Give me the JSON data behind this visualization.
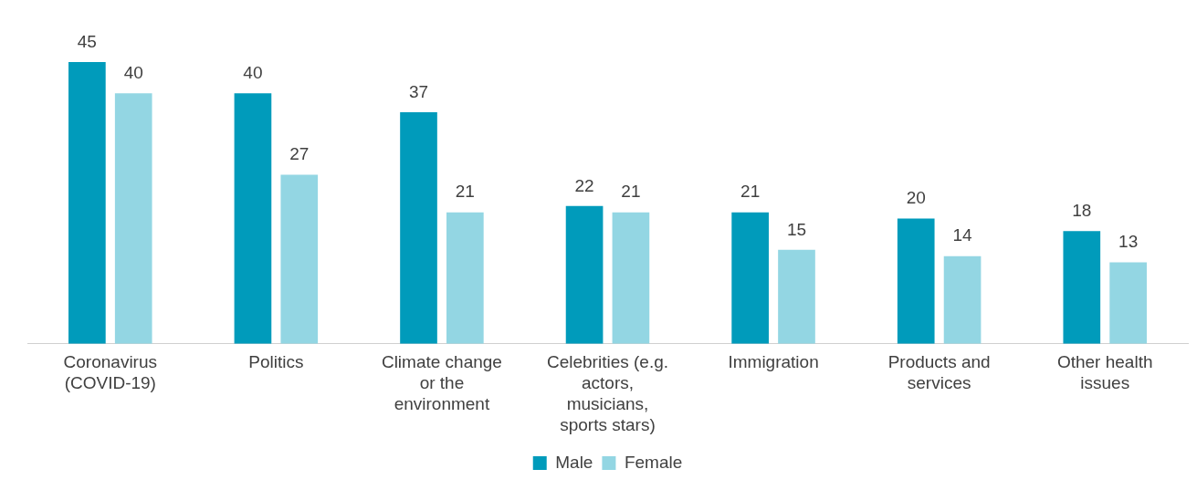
{
  "chart_data": {
    "type": "bar",
    "categories": [
      "Coronavirus (COVID-19)",
      "Politics",
      "Climate change or the environment",
      "Celebrities (e.g. actors, musicians, sports stars)",
      "Immigration",
      "Products and services",
      "Other health issues"
    ],
    "series": [
      {
        "name": "Male",
        "color": "#009bbb",
        "values": [
          45,
          40,
          37,
          22,
          21,
          20,
          18
        ]
      },
      {
        "name": "Female",
        "color": "#93d6e3",
        "values": [
          40,
          27,
          21,
          21,
          15,
          14,
          13
        ]
      }
    ],
    "data_labels": true,
    "legend": "bottom",
    "grid": false
  }
}
